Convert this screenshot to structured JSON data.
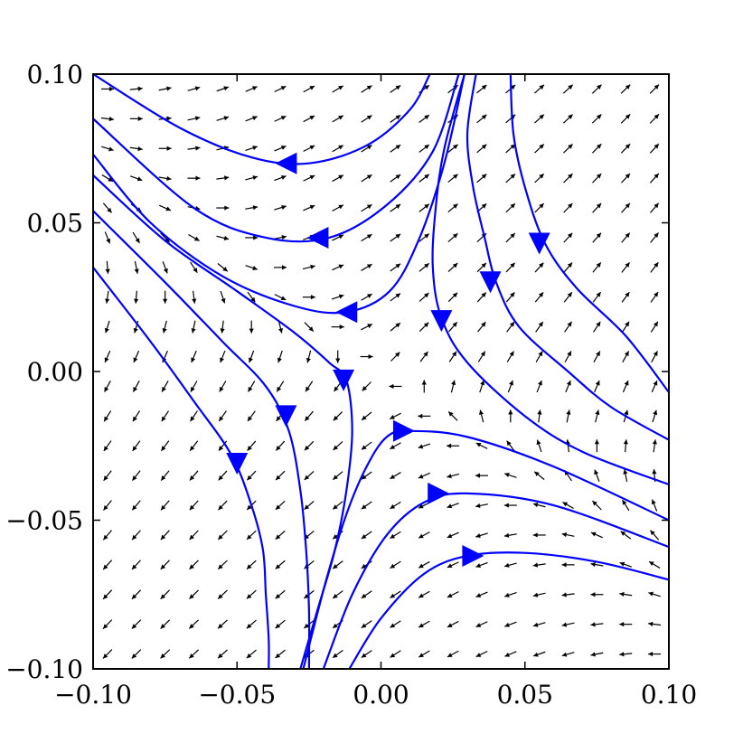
{
  "chart_data": {
    "type": "streamplot",
    "title": "",
    "xlabel": "",
    "ylabel": "",
    "xlim": [
      -0.1,
      0.1
    ],
    "ylim": [
      -0.1,
      0.1
    ],
    "xticks": [
      {
        "value": -0.1,
        "label": "−0.10"
      },
      {
        "value": -0.05,
        "label": "−0.05"
      },
      {
        "value": 0.0,
        "label": "0.00"
      },
      {
        "value": 0.05,
        "label": "0.05"
      },
      {
        "value": 0.1,
        "label": "0.10"
      }
    ],
    "yticks": [
      {
        "value": -0.1,
        "label": "−0.10"
      },
      {
        "value": -0.05,
        "label": "−0.05"
      },
      {
        "value": 0.0,
        "label": "0.00"
      },
      {
        "value": 0.05,
        "label": "0.05"
      },
      {
        "value": 0.1,
        "label": "0.10"
      }
    ],
    "grid": false,
    "stream_color": "#0000ff",
    "quiver_color": "#000000",
    "quiver_field": {
      "u": "x + 3y",
      "v": "2x + 2y",
      "saddle_at": [
        0,
        0
      ]
    },
    "streamlines": [
      {
        "points": [
          [
            0.017,
            0.1
          ],
          [
            0.01,
            0.088
          ],
          [
            -0.005,
            0.076
          ],
          [
            -0.025,
            0.07
          ],
          [
            -0.045,
            0.072
          ],
          [
            -0.07,
            0.082
          ],
          [
            -0.1,
            0.1
          ]
        ],
        "arrow": {
          "at": [
            -0.033,
            0.07
          ],
          "dir": "left"
        }
      },
      {
        "points": [
          [
            0.027,
            0.1
          ],
          [
            0.018,
            0.074
          ],
          [
            0.002,
            0.056
          ],
          [
            -0.018,
            0.045
          ],
          [
            -0.04,
            0.045
          ],
          [
            -0.065,
            0.055
          ],
          [
            -0.1,
            0.085
          ]
        ],
        "arrow": {
          "at": [
            -0.022,
            0.045
          ],
          "dir": "left"
        }
      },
      {
        "points": [
          [
            0.029,
            0.1
          ],
          [
            0.022,
            0.07
          ],
          [
            0.013,
            0.044
          ],
          [
            0.003,
            0.027
          ],
          [
            -0.012,
            0.02
          ],
          [
            -0.03,
            0.022
          ],
          [
            -0.055,
            0.032
          ],
          [
            -0.08,
            0.05
          ],
          [
            -0.1,
            0.073
          ]
        ],
        "arrow": {
          "at": [
            -0.012,
            0.02
          ],
          "dir": "left"
        }
      },
      {
        "points": [
          [
            -0.1,
            0.066
          ],
          [
            -0.075,
            0.044
          ],
          [
            -0.05,
            0.027
          ],
          [
            -0.03,
            0.013
          ],
          [
            -0.018,
            0.003
          ],
          [
            -0.012,
            -0.003
          ],
          [
            -0.01,
            -0.02
          ],
          [
            -0.012,
            -0.04
          ],
          [
            -0.016,
            -0.06
          ],
          [
            -0.022,
            -0.08
          ],
          [
            -0.028,
            -0.1
          ]
        ],
        "arrow": {
          "at": [
            -0.013,
            -0.003
          ],
          "dir": "down"
        }
      },
      {
        "points": [
          [
            -0.1,
            0.054
          ],
          [
            -0.075,
            0.03
          ],
          [
            -0.055,
            0.01
          ],
          [
            -0.04,
            -0.005
          ],
          [
            -0.032,
            -0.02
          ],
          [
            -0.028,
            -0.04
          ],
          [
            -0.026,
            -0.06
          ],
          [
            -0.025,
            -0.08
          ],
          [
            -0.025,
            -0.1
          ]
        ],
        "arrow": {
          "at": [
            -0.033,
            -0.015
          ],
          "dir": "down"
        }
      },
      {
        "points": [
          [
            -0.1,
            0.035
          ],
          [
            -0.08,
            0.01
          ],
          [
            -0.065,
            -0.01
          ],
          [
            -0.052,
            -0.028
          ],
          [
            -0.045,
            -0.045
          ],
          [
            -0.041,
            -0.06
          ],
          [
            -0.04,
            -0.075
          ],
          [
            -0.039,
            -0.09
          ],
          [
            -0.039,
            -0.1
          ]
        ],
        "arrow": {
          "at": [
            -0.05,
            -0.031
          ],
          "dir": "down"
        }
      },
      {
        "points": [
          [
            0.033,
            0.1
          ],
          [
            0.03,
            0.08
          ],
          [
            0.032,
            0.062
          ],
          [
            0.036,
            0.045
          ],
          [
            0.04,
            0.03
          ],
          [
            0.048,
            0.015
          ],
          [
            0.065,
            0.0
          ],
          [
            0.08,
            -0.012
          ],
          [
            0.1,
            -0.023
          ]
        ],
        "arrow": {
          "at": [
            0.038,
            0.03
          ],
          "dir": "down"
        }
      },
      {
        "points": [
          [
            0.045,
            0.1
          ],
          [
            0.046,
            0.08
          ],
          [
            0.05,
            0.062
          ],
          [
            0.057,
            0.043
          ],
          [
            0.068,
            0.028
          ],
          [
            0.085,
            0.012
          ],
          [
            0.1,
            -0.007
          ]
        ],
        "arrow": {
          "at": [
            0.055,
            0.043
          ],
          "dir": "down"
        }
      },
      {
        "points": [
          [
            0.029,
            0.1
          ],
          [
            0.022,
            0.075
          ],
          [
            0.019,
            0.055
          ],
          [
            0.018,
            0.035
          ],
          [
            0.021,
            0.018
          ],
          [
            0.03,
            0.003
          ],
          [
            0.05,
            -0.015
          ],
          [
            0.07,
            -0.027
          ],
          [
            0.1,
            -0.038
          ]
        ],
        "arrow": {
          "at": [
            0.021,
            0.017
          ],
          "dir": "down"
        }
      },
      {
        "points": [
          [
            -0.027,
            -0.1
          ],
          [
            -0.019,
            -0.07
          ],
          [
            -0.012,
            -0.048
          ],
          [
            -0.005,
            -0.032
          ],
          [
            0.002,
            -0.022
          ],
          [
            0.01,
            -0.02
          ],
          [
            0.03,
            -0.022
          ],
          [
            0.06,
            -0.032
          ],
          [
            0.1,
            -0.05
          ]
        ],
        "arrow": {
          "at": [
            0.008,
            -0.02
          ],
          "dir": "right"
        }
      },
      {
        "points": [
          [
            -0.02,
            -0.1
          ],
          [
            -0.01,
            -0.075
          ],
          [
            0.002,
            -0.055
          ],
          [
            0.015,
            -0.044
          ],
          [
            0.03,
            -0.041
          ],
          [
            0.06,
            -0.045
          ],
          [
            0.1,
            -0.059
          ]
        ],
        "arrow": {
          "at": [
            0.02,
            -0.041
          ],
          "dir": "right"
        }
      },
      {
        "points": [
          [
            -0.011,
            -0.1
          ],
          [
            0.0,
            -0.083
          ],
          [
            0.015,
            -0.068
          ],
          [
            0.03,
            -0.062
          ],
          [
            0.05,
            -0.061
          ],
          [
            0.075,
            -0.064
          ],
          [
            0.1,
            -0.07
          ]
        ],
        "arrow": {
          "at": [
            0.032,
            -0.062
          ],
          "dir": "right"
        }
      }
    ]
  }
}
